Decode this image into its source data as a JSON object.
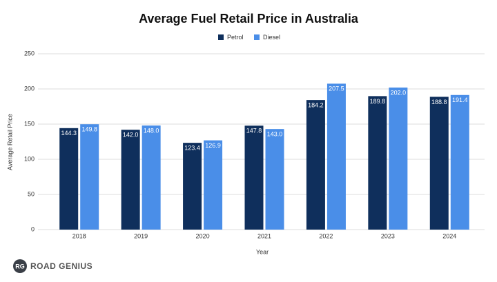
{
  "chart_data": {
    "type": "bar",
    "title": "Average Fuel Retail Price in Australia",
    "x_label": "Year",
    "y_label": "Average Retail Price",
    "categories": [
      "2018",
      "2019",
      "2020",
      "2021",
      "2022",
      "2023",
      "2024"
    ],
    "series": [
      {
        "name": "Petrol",
        "color": "#0f2f5c",
        "values": [
          144.3,
          142.0,
          123.4,
          147.8,
          184.2,
          189.8,
          188.8
        ],
        "value_labels": [
          "144.3",
          "142.0",
          "123.4",
          "147.8",
          "184.2",
          "189.8",
          "188.8"
        ]
      },
      {
        "name": "Diesel",
        "color": "#4a8ee8",
        "values": [
          149.8,
          148.0,
          126.9,
          143.0,
          207.5,
          202.0,
          191.4
        ],
        "value_labels": [
          "149.8",
          "148.0",
          "126.9",
          "143.0",
          "207.5",
          "202.0",
          "191.4"
        ]
      }
    ],
    "ylim": [
      0,
      250
    ],
    "yticks": [
      0,
      50,
      100,
      150,
      200,
      250
    ],
    "grid": true,
    "legend": "top"
  },
  "footer": {
    "logo": "RG",
    "brand": "ROAD GENIUS"
  }
}
